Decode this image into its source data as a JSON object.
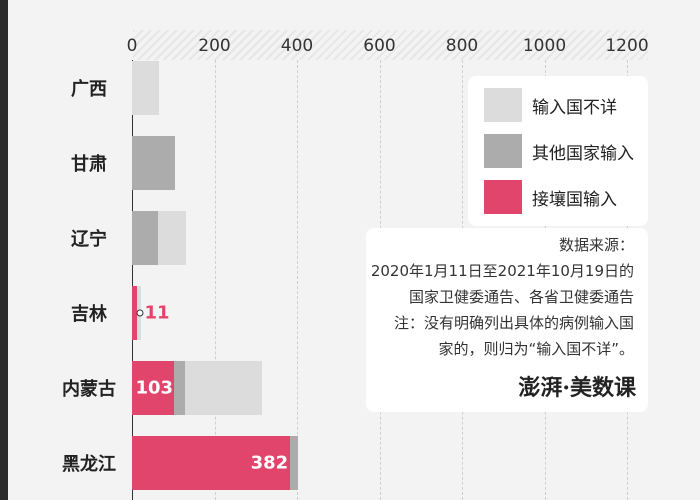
{
  "chart_data": {
    "type": "bar",
    "stacked": true,
    "orientation": "horizontal",
    "categories": [
      "广西",
      "甘肃",
      "辽宁",
      "吉林",
      "内蒙古",
      "黑龙江"
    ],
    "xlim": [
      0,
      1250
    ],
    "x_ticks": [
      "0",
      "200",
      "400",
      "600",
      "800",
      "1000",
      "1200"
    ],
    "series": [
      {
        "name": "接壤国输入",
        "color": "#e2456c",
        "values": [
          0,
          0,
          0,
          11,
          103,
          382
        ]
      },
      {
        "name": "其他国家输入",
        "color": "#acacac",
        "values": [
          0,
          105,
          62,
          0,
          25,
          20
        ]
      },
      {
        "name": "输入国不详",
        "color": "#dcdcdc",
        "values": [
          65,
          0,
          68,
          10,
          188,
          0
        ]
      }
    ],
    "data_labels": {
      "吉林": "11",
      "内蒙古": "103",
      "黑龙江": "382"
    },
    "legend_position": "top-right"
  },
  "legend": {
    "items": [
      {
        "label": "输入国不详",
        "color": "#dcdcdc"
      },
      {
        "label": "其他国家输入",
        "color": "#acacac"
      },
      {
        "label": "接壤国输入",
        "color": "#e2456c"
      }
    ]
  },
  "note": {
    "lines": [
      "数据来源：",
      "2020年1月11日至2021年10月19日的",
      "国家卫健委通告、各省卫健委通告",
      "注：没有明确列出具体的病例输入国",
      "家的，则归为“输入国不详”。"
    ],
    "logo": "澎湃·美数课"
  }
}
